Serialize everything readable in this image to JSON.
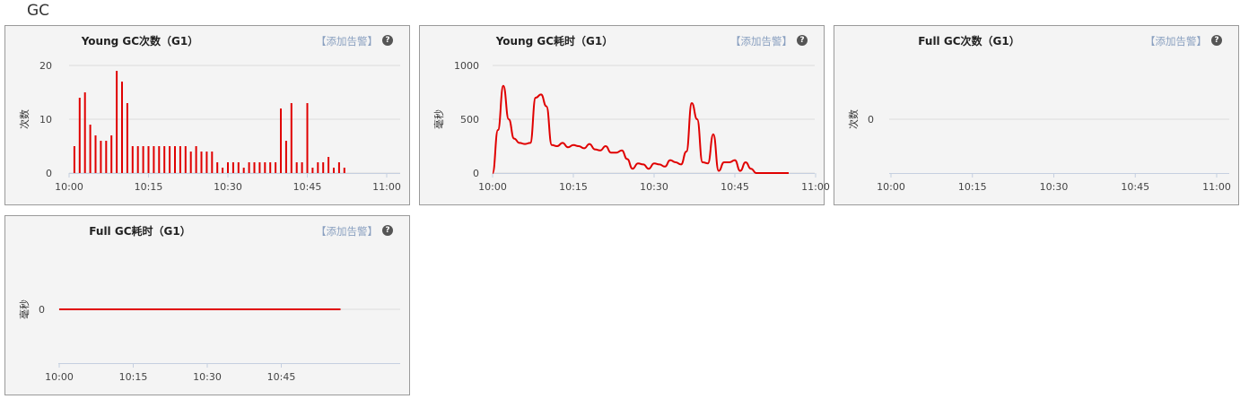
{
  "section_title": "GC",
  "colors": {
    "series": "#e00000",
    "grid": "#dddddd",
    "axis": "#c5cfe0"
  },
  "icon": {
    "help": "question-circle-icon"
  },
  "panels": [
    {
      "title": "Young GC次数（G1）",
      "alert_label": "【添加告警】",
      "help_glyph": "?",
      "chart_data": {
        "type": "bar",
        "title": "Young GC次数（G1）",
        "ylabel": "次数",
        "xlabel": "",
        "ylim": [
          0,
          20
        ],
        "yticks": [
          0,
          10,
          20
        ],
        "xticks": [
          "10:00",
          "10:15",
          "10:30",
          "10:45",
          "11:00"
        ],
        "x_range_minutes": [
          0,
          60
        ],
        "grid": true,
        "x": [
          1,
          2,
          3,
          4,
          5,
          6,
          7,
          8,
          9,
          10,
          11,
          12,
          13,
          14,
          15,
          16,
          17,
          18,
          19,
          20,
          21,
          22,
          23,
          24,
          25,
          26,
          27,
          28,
          29,
          30,
          31,
          32,
          33,
          34,
          35,
          36,
          37,
          38,
          39,
          40,
          41,
          42,
          43,
          44,
          45,
          46,
          47,
          48,
          49,
          50,
          51,
          52
        ],
        "values": [
          5,
          14,
          15,
          9,
          7,
          6,
          6,
          7,
          19,
          17,
          13,
          5,
          5,
          5,
          5,
          5,
          5,
          5,
          5,
          5,
          5,
          5,
          4,
          5,
          4,
          4,
          4,
          2,
          1,
          2,
          2,
          2,
          1,
          2,
          2,
          2,
          2,
          2,
          2,
          12,
          6,
          13,
          2,
          2,
          13,
          1,
          2,
          2,
          3,
          1,
          2,
          1
        ]
      }
    },
    {
      "title": "Young GC耗时（G1）",
      "alert_label": "【添加告警】",
      "help_glyph": "?",
      "chart_data": {
        "type": "line",
        "title": "Young GC耗时（G1）",
        "ylabel": "毫秒",
        "xlabel": "",
        "ylim": [
          0,
          1000
        ],
        "yticks": [
          0,
          500,
          1000
        ],
        "xticks": [
          "10:00",
          "10:15",
          "10:30",
          "10:45",
          "11:00"
        ],
        "x_range_minutes": [
          0,
          60
        ],
        "grid": true,
        "x": [
          0,
          1,
          2,
          3,
          4,
          5,
          6,
          7,
          8,
          9,
          10,
          11,
          12,
          13,
          14,
          15,
          16,
          17,
          18,
          19,
          20,
          21,
          22,
          23,
          24,
          25,
          26,
          27,
          28,
          29,
          30,
          31,
          32,
          33,
          34,
          35,
          36,
          37,
          38,
          39,
          40,
          41,
          42,
          43,
          44,
          45,
          46,
          47,
          48,
          49,
          50,
          51,
          52,
          53,
          54,
          55
        ],
        "values": [
          0,
          400,
          810,
          500,
          320,
          280,
          270,
          280,
          700,
          730,
          620,
          260,
          250,
          280,
          240,
          260,
          250,
          230,
          270,
          220,
          210,
          250,
          190,
          190,
          210,
          130,
          40,
          90,
          80,
          40,
          90,
          80,
          60,
          120,
          100,
          80,
          200,
          650,
          500,
          100,
          90,
          360,
          20,
          100,
          100,
          120,
          20,
          100,
          40,
          0,
          0,
          0,
          0,
          0,
          0,
          0
        ]
      }
    },
    {
      "title": "Full GC次数（G1）",
      "alert_label": "【添加告警】",
      "help_glyph": "?",
      "chart_data": {
        "type": "line",
        "title": "Full GC次数（G1）",
        "ylabel": "次数",
        "xlabel": "",
        "yticks": [
          0
        ],
        "xticks": [
          "10:00",
          "10:15",
          "10:30",
          "10:45",
          "11:00"
        ],
        "x_range_minutes": [
          0,
          60
        ],
        "grid": true,
        "x": [],
        "values": []
      }
    },
    {
      "title": "Full GC耗时（G1）",
      "alert_label": "【添加告警】",
      "help_glyph": "?",
      "chart_data": {
        "type": "line",
        "title": "Full GC耗时（G1）",
        "ylabel": "毫秒",
        "xlabel": "",
        "yticks": [
          0
        ],
        "xticks": [
          "10:00",
          "10:15",
          "10:30",
          "10:45"
        ],
        "x_range_minutes": [
          0,
          60
        ],
        "grid": true,
        "x": [
          0,
          57
        ],
        "values": [
          0,
          0
        ]
      }
    }
  ]
}
